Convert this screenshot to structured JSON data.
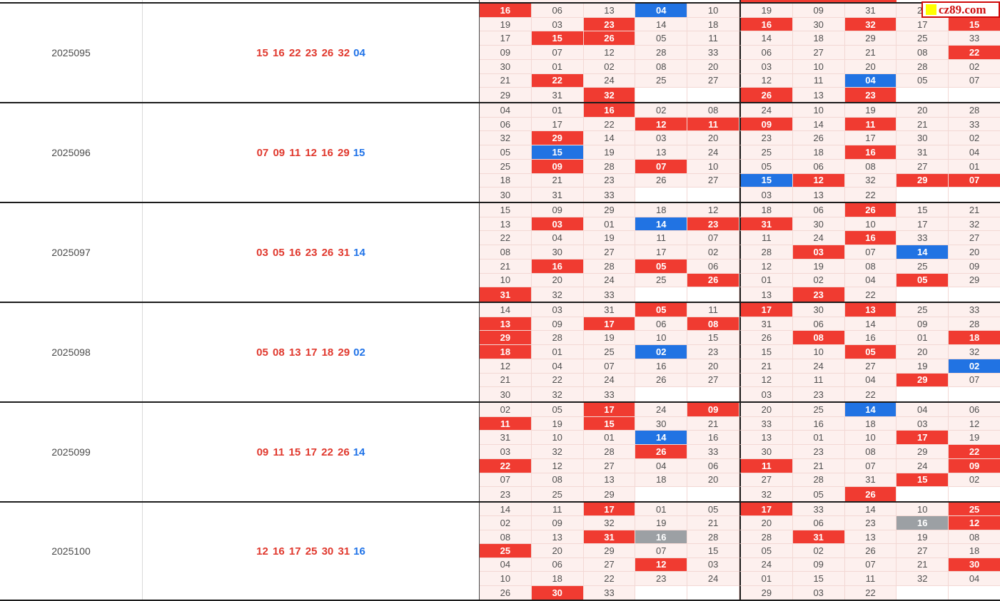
{
  "site": {
    "logo_text": "cz89.com"
  },
  "colors": {
    "red_highlight": "#f03b31",
    "blue_highlight": "#2173e3",
    "gray_highlight": "#9ca0a4",
    "cell_background": "#fdf0ee",
    "empty_cell_background": "#ffffff",
    "red_number_text": "#e0382d",
    "blue_number_text": "#2073e8"
  },
  "top_partial_row": {
    "states": [
      "plain",
      "plain",
      "plain",
      "empty",
      "empty",
      "red",
      "red",
      "red",
      "empty",
      "empty"
    ]
  },
  "blocks": [
    {
      "period": "2025095",
      "red_numbers": "15 16 22 23 26 32",
      "blue_number": "04",
      "rows": [
        [
          "16R",
          "06",
          "13",
          "04B",
          "10",
          "19",
          "09",
          "31",
          "24",
          "--"
        ],
        [
          "19",
          "03",
          "23R",
          "14",
          "18",
          "16R",
          "30",
          "32R",
          "17",
          "15R"
        ],
        [
          "17",
          "15R",
          "26R",
          "05",
          "11",
          "14",
          "18",
          "29",
          "25",
          "33"
        ],
        [
          "09",
          "07",
          "12",
          "28",
          "33",
          "06",
          "27",
          "21",
          "08",
          "22R"
        ],
        [
          "30",
          "01",
          "02",
          "08",
          "20",
          "03",
          "10",
          "20",
          "28",
          "02"
        ],
        [
          "21",
          "22R",
          "24",
          "25",
          "27",
          "12",
          "11",
          "04B",
          "05",
          "07"
        ],
        [
          "29",
          "31",
          "32R",
          "",
          "",
          "26R",
          "13",
          "23R",
          "",
          ""
        ]
      ]
    },
    {
      "period": "2025096",
      "red_numbers": "07 09 11 12 16 29",
      "blue_number": "15",
      "rows": [
        [
          "04",
          "01",
          "16R",
          "02",
          "08",
          "24",
          "10",
          "19",
          "20",
          "28"
        ],
        [
          "06",
          "17",
          "22",
          "12R",
          "11R",
          "09R",
          "14",
          "11R",
          "21",
          "33"
        ],
        [
          "32",
          "29R",
          "14",
          "03",
          "20",
          "23",
          "26",
          "17",
          "30",
          "02"
        ],
        [
          "05",
          "15B",
          "19",
          "13",
          "24",
          "25",
          "18",
          "16R",
          "31",
          "04"
        ],
        [
          "25",
          "09R",
          "28",
          "07R",
          "10",
          "05",
          "06",
          "08",
          "27",
          "01"
        ],
        [
          "18",
          "21",
          "23",
          "26",
          "27",
          "15B",
          "12R",
          "32",
          "29R",
          "07R"
        ],
        [
          "30",
          "31",
          "33",
          "",
          "",
          "03",
          "13",
          "22",
          "",
          ""
        ]
      ]
    },
    {
      "period": "2025097",
      "red_numbers": "03 05 16 23 26 31",
      "blue_number": "14",
      "rows": [
        [
          "15",
          "09",
          "29",
          "18",
          "12",
          "18",
          "06",
          "26R",
          "15",
          "21"
        ],
        [
          "13",
          "03R",
          "01",
          "14B",
          "23R",
          "31R",
          "30",
          "10",
          "17",
          "32"
        ],
        [
          "22",
          "04",
          "19",
          "11",
          "07",
          "11",
          "24",
          "16R",
          "33",
          "27"
        ],
        [
          "08",
          "30",
          "27",
          "17",
          "02",
          "28",
          "03R",
          "07",
          "14B",
          "20"
        ],
        [
          "21",
          "16R",
          "28",
          "05R",
          "06",
          "12",
          "19",
          "08",
          "25",
          "09"
        ],
        [
          "10",
          "20",
          "24",
          "25",
          "26R",
          "01",
          "02",
          "04",
          "05R",
          "29"
        ],
        [
          "31R",
          "32",
          "33",
          "",
          "",
          "13",
          "23R",
          "22",
          "",
          ""
        ]
      ]
    },
    {
      "period": "2025098",
      "red_numbers": "05 08 13 17 18 29",
      "blue_number": "02",
      "rows": [
        [
          "14",
          "03",
          "31",
          "05R",
          "11",
          "17R",
          "30",
          "13R",
          "25",
          "33"
        ],
        [
          "13R",
          "09",
          "17R",
          "06",
          "08R",
          "31",
          "06",
          "14",
          "09",
          "28"
        ],
        [
          "29R",
          "28",
          "19",
          "10",
          "15",
          "26",
          "08R",
          "16",
          "01",
          "18R"
        ],
        [
          "18R",
          "01",
          "25",
          "02B",
          "23",
          "15",
          "10",
          "05R",
          "20",
          "32"
        ],
        [
          "12",
          "04",
          "07",
          "16",
          "20",
          "21",
          "24",
          "27",
          "19",
          "02B"
        ],
        [
          "21",
          "22",
          "24",
          "26",
          "27",
          "12",
          "11",
          "04",
          "29R",
          "07"
        ],
        [
          "30",
          "32",
          "33",
          "",
          "",
          "03",
          "23",
          "22",
          "",
          ""
        ]
      ]
    },
    {
      "period": "2025099",
      "red_numbers": "09 11 15 17 22 26",
      "blue_number": "14",
      "rows": [
        [
          "02",
          "05",
          "17R",
          "24",
          "09R",
          "20",
          "25",
          "14B",
          "04",
          "06"
        ],
        [
          "11R",
          "19",
          "15R",
          "30",
          "21",
          "33",
          "16",
          "18",
          "03",
          "12"
        ],
        [
          "31",
          "10",
          "01",
          "14B",
          "16",
          "13",
          "01",
          "10",
          "17R",
          "19"
        ],
        [
          "03",
          "32",
          "28",
          "26R",
          "33",
          "30",
          "23",
          "08",
          "29",
          "22R"
        ],
        [
          "22R",
          "12",
          "27",
          "04",
          "06",
          "11R",
          "21",
          "07",
          "24",
          "09R"
        ],
        [
          "07",
          "08",
          "13",
          "18",
          "20",
          "27",
          "28",
          "31",
          "15R",
          "02"
        ],
        [
          "23",
          "25",
          "29",
          "",
          "",
          "32",
          "05",
          "26R",
          "",
          ""
        ]
      ]
    },
    {
      "period": "2025100",
      "red_numbers": "12 16 17 25 30 31",
      "blue_number": "16",
      "rows": [
        [
          "14",
          "11",
          "17R",
          "01",
          "05",
          "17R",
          "33",
          "14",
          "10",
          "25R"
        ],
        [
          "02",
          "09",
          "32",
          "19",
          "21",
          "20",
          "06",
          "23",
          "16G",
          "12R"
        ],
        [
          "08",
          "13",
          "31R",
          "16G",
          "28",
          "28",
          "31R",
          "13",
          "19",
          "08"
        ],
        [
          "25R",
          "20",
          "29",
          "07",
          "15",
          "05",
          "02",
          "26",
          "27",
          "18"
        ],
        [
          "04",
          "06",
          "27",
          "12R",
          "03",
          "24",
          "09",
          "07",
          "21",
          "30R"
        ],
        [
          "10",
          "18",
          "22",
          "23",
          "24",
          "01",
          "15",
          "11",
          "32",
          "04"
        ],
        [
          "26",
          "30R",
          "33",
          "",
          "",
          "29",
          "03",
          "22",
          "",
          ""
        ]
      ]
    }
  ]
}
